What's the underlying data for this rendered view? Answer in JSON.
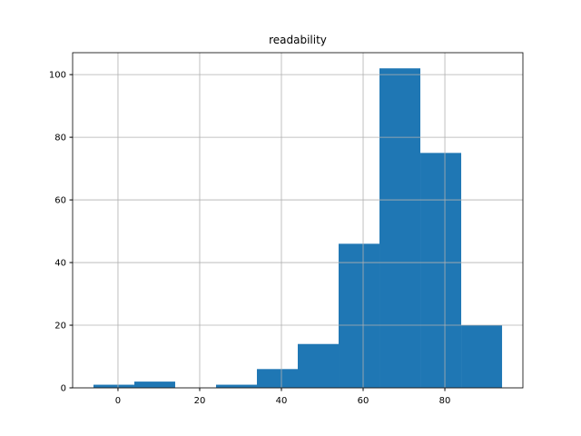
{
  "chart_data": {
    "type": "histogram",
    "title": "readability",
    "bins": [
      -6,
      4,
      14,
      24,
      34,
      44,
      54,
      64,
      74,
      84,
      94
    ],
    "values": [
      1,
      2,
      0,
      1,
      6,
      14,
      46,
      102,
      75,
      20
    ],
    "color": "#1f77b4",
    "xlim": [
      -11.1,
      99.1
    ],
    "xticks": [
      0,
      20,
      40,
      60,
      80
    ],
    "ylim": [
      0,
      107
    ],
    "yticks": [
      0,
      20,
      40,
      60,
      80,
      100
    ],
    "grid": true
  }
}
